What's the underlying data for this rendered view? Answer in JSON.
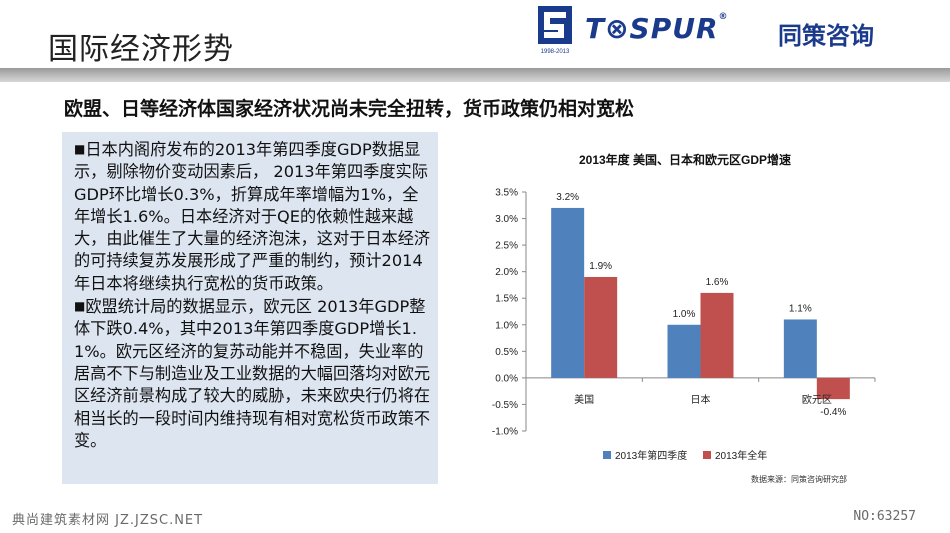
{
  "slide": {
    "title": "国际经济形势",
    "subtitle": "欧盟、日等经济体国家经济状况尚未完全扭转，货币政策仍相对宽松"
  },
  "logo": {
    "brand_text": "T⊗SPUR",
    "registered_mark": "®",
    "chinese_name": "同策咨询",
    "emblem_caption": "1998-2013"
  },
  "text_panel": {
    "bullet_icon": "black-square",
    "paragraphs": [
      "日本内阁府发布的2013年第四季度GDP数据显示，剔除物价变动因素后， 2013年第四季度实际GDP环比增长0.3%，折算成年率增幅为1%，全年增长1.6%。日本经济对于QE的依赖性越来越大，由此催生了大量的经济泡沫，这对于日本经济的可持续复苏发展形成了严重的制约，预计2014年日本将继续执行宽松的货币政策。",
      "欧盟统计局的数据显示，欧元区 2013年GDP整体下跌0.4%，其中2013年第四季度GDP增长1.1%。欧元区经济的复苏动能并不稳固，失业率的居高不下与制造业及工业数据的大幅回落均对欧元区经济前景构成了较大的威胁，未来欧央行仍将在相当长的一段时间内维持现有相对宽松货币政策不变。"
    ]
  },
  "chart_data": {
    "type": "bar",
    "title": "2013年度 美国、日本和欧元区GDP增速",
    "categories": [
      "美国",
      "日本",
      "欧元区"
    ],
    "series": [
      {
        "name": "2013年第四季度",
        "values": [
          3.2,
          1.0,
          1.1
        ],
        "labels": [
          "3.2%",
          "1.0%",
          "1.1%"
        ],
        "color": "#4f81bd"
      },
      {
        "name": "2013年全年",
        "values": [
          1.9,
          1.6,
          -0.4
        ],
        "labels": [
          "1.9%",
          "1.6%",
          "-0.4%"
        ],
        "color": "#c0504d"
      }
    ],
    "ylim": [
      -1.0,
      3.5
    ],
    "yticks": [
      3.5,
      3.0,
      2.5,
      2.0,
      1.5,
      1.0,
      0.5,
      0.0,
      -0.5,
      -1.0
    ],
    "ytick_labels": [
      "3.5%",
      "3.0%",
      "2.5%",
      "2.0%",
      "1.5%",
      "1.0%",
      "0.5%",
      "0.0%",
      "-0.5%",
      "-1.0%"
    ],
    "grid": false,
    "legend_position": "bottom",
    "source_note": "数据来源：同策咨询研究部"
  },
  "watermark": {
    "left": "典尚建筑素材网 JZ.JZSC.NET",
    "right": "NO:63257"
  }
}
